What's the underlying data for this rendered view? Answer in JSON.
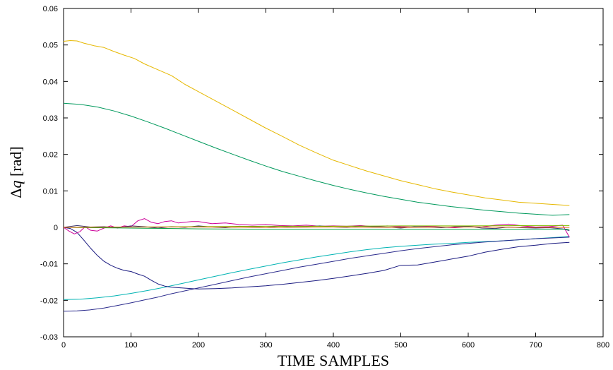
{
  "chart_data": {
    "type": "line",
    "title": "",
    "xlabel": "TIME SAMPLES",
    "ylabel_symbol": "Δ",
    "ylabel_var": "q",
    "ylabel_unit": " [rad]",
    "xlim": [
      0,
      800
    ],
    "ylim": [
      -0.03,
      0.06
    ],
    "xticks": [
      0,
      100,
      200,
      300,
      400,
      500,
      600,
      700,
      800
    ],
    "xtick_labels": [
      "0",
      "100",
      "200",
      "300",
      "400",
      "500",
      "600",
      "700",
      "800"
    ],
    "yticks": [
      -0.03,
      -0.02,
      -0.01,
      0,
      0.01,
      0.02,
      0.03,
      0.04,
      0.05,
      0.06
    ],
    "ytick_labels": [
      "-0.03",
      "-0.02",
      "-0.01",
      "0",
      "0.01",
      "0.02",
      "0.03",
      "0.04",
      "0.05",
      "0.06"
    ],
    "grid": false,
    "series": [
      {
        "color": "#e6b800",
        "x": [
          0,
          10,
          20,
          30,
          45,
          60,
          75,
          90,
          105,
          120,
          140,
          160,
          180,
          200,
          225,
          250,
          275,
          300,
          325,
          350,
          375,
          400,
          425,
          450,
          475,
          500,
          525,
          550,
          575,
          600,
          625,
          650,
          675,
          700,
          725,
          750
        ],
        "y": [
          0.051,
          0.0512,
          0.0511,
          0.0505,
          0.0498,
          0.0493,
          0.0482,
          0.0472,
          0.0463,
          0.0448,
          0.0432,
          0.0416,
          0.0392,
          0.0372,
          0.0347,
          0.0322,
          0.0297,
          0.0272,
          0.0249,
          0.0225,
          0.0204,
          0.0184,
          0.0169,
          0.0154,
          0.0141,
          0.0128,
          0.0117,
          0.0106,
          0.0097,
          0.0089,
          0.0081,
          0.0075,
          0.0069,
          0.0066,
          0.0063,
          0.006
        ]
      },
      {
        "color": "#00995c",
        "x": [
          0,
          25,
          50,
          75,
          100,
          125,
          150,
          175,
          200,
          225,
          250,
          275,
          300,
          325,
          350,
          375,
          400,
          425,
          450,
          475,
          500,
          525,
          550,
          575,
          600,
          625,
          650,
          675,
          700,
          725,
          750
        ],
        "y": [
          0.034,
          0.0337,
          0.033,
          0.0319,
          0.0305,
          0.0289,
          0.0272,
          0.0254,
          0.0236,
          0.0218,
          0.0201,
          0.0184,
          0.0168,
          0.0153,
          0.014,
          0.0127,
          0.0115,
          0.0104,
          0.0094,
          0.0085,
          0.0077,
          0.0069,
          0.0063,
          0.0057,
          0.0052,
          0.0047,
          0.0043,
          0.0039,
          0.0036,
          0.0033,
          0.0035
        ]
      },
      {
        "color": "#00b3b3",
        "x": [
          0,
          25,
          50,
          75,
          100,
          125,
          150,
          175,
          200,
          225,
          250,
          275,
          300,
          325,
          350,
          375,
          400,
          425,
          450,
          475,
          500,
          525,
          550,
          575,
          600,
          625,
          650,
          675,
          700,
          725,
          750
        ],
        "y": [
          -0.0198,
          -0.0197,
          -0.0193,
          -0.0188,
          -0.0181,
          -0.0173,
          -0.0164,
          -0.0154,
          -0.0144,
          -0.0134,
          -0.0124,
          -0.0115,
          -0.0106,
          -0.0097,
          -0.0089,
          -0.0081,
          -0.0074,
          -0.0067,
          -0.0061,
          -0.0056,
          -0.0052,
          -0.0049,
          -0.0046,
          -0.0044,
          -0.0041,
          -0.0039,
          -0.0037,
          -0.0034,
          -0.0031,
          -0.0028,
          -0.0025
        ]
      },
      {
        "color": "#2a2a8c",
        "x": [
          0,
          20,
          40,
          60,
          80,
          100,
          120,
          140,
          160,
          180,
          200,
          225,
          250,
          275,
          300,
          325,
          350,
          375,
          400,
          425,
          450,
          475,
          500,
          525,
          550,
          575,
          600,
          625,
          650,
          675,
          700,
          725,
          750
        ],
        "y": [
          -0.023,
          -0.0229,
          -0.0226,
          -0.0221,
          -0.0214,
          -0.0207,
          -0.0199,
          -0.0191,
          -0.0182,
          -0.0174,
          -0.0166,
          -0.0156,
          -0.0146,
          -0.0136,
          -0.0127,
          -0.0118,
          -0.0109,
          -0.0101,
          -0.0093,
          -0.0085,
          -0.0078,
          -0.0071,
          -0.0064,
          -0.0058,
          -0.0053,
          -0.0048,
          -0.0044,
          -0.004,
          -0.0037,
          -0.0034,
          -0.0031,
          -0.0029,
          -0.0027
        ]
      },
      {
        "color": "#1a1a80",
        "x": [
          0,
          10,
          20,
          30,
          40,
          50,
          60,
          70,
          80,
          90,
          100,
          110,
          120,
          130,
          140,
          150,
          160,
          175,
          190,
          200,
          225,
          250,
          275,
          300,
          325,
          350,
          375,
          400,
          425,
          450,
          475,
          500,
          525,
          550,
          575,
          600,
          625,
          650,
          675,
          700,
          725,
          750
        ],
        "y": [
          0,
          -0.0003,
          -0.0014,
          -0.0035,
          -0.0057,
          -0.0077,
          -0.0093,
          -0.0104,
          -0.0112,
          -0.0118,
          -0.0121,
          -0.0128,
          -0.0134,
          -0.0145,
          -0.0155,
          -0.0161,
          -0.0164,
          -0.0166,
          -0.0168,
          -0.0169,
          -0.0168,
          -0.0166,
          -0.0163,
          -0.016,
          -0.0156,
          -0.0151,
          -0.0146,
          -0.014,
          -0.0133,
          -0.0126,
          -0.0118,
          -0.0104,
          -0.0103,
          -0.0095,
          -0.0087,
          -0.0079,
          -0.0068,
          -0.006,
          -0.0053,
          -0.0049,
          -0.0044,
          -0.0041
        ]
      },
      {
        "color": "#cc0099",
        "x": [
          0,
          8,
          16,
          24,
          32,
          40,
          50,
          60,
          70,
          80,
          90,
          100,
          110,
          120,
          130,
          140,
          150,
          160,
          170,
          180,
          190,
          200,
          220,
          240,
          260,
          280,
          300,
          320,
          340,
          360,
          380,
          400,
          420,
          440,
          460,
          480,
          500,
          520,
          540,
          560,
          580,
          600,
          620,
          640,
          660,
          680,
          700,
          720,
          740,
          750
        ],
        "y": [
          0,
          -0.001,
          -0.0018,
          -0.0012,
          0.0002,
          -0.0008,
          -0.001,
          -0.0002,
          0.0004,
          -0.0002,
          0.0004,
          0.0002,
          0.0018,
          0.0024,
          0.0014,
          0.001,
          0.0016,
          0.0018,
          0.0012,
          0.0014,
          0.0016,
          0.0016,
          0.001,
          0.0012,
          0.0008,
          0.0006,
          0.0008,
          0.0005,
          0.0004,
          0.0006,
          0.0003,
          0.0004,
          0.0003,
          0.0005,
          0.0002,
          0.0004,
          0.0002,
          0.0001,
          0.0003,
          0.0001,
          -0.0001,
          0.0002,
          0.0001,
          0.0006,
          0.0009,
          0.0004,
          0.0001,
          0.0002,
          0.0006,
          -0.0027
        ]
      },
      {
        "color": "#3d3d7a",
        "x": [
          0,
          20,
          40,
          60,
          80,
          100,
          120,
          140,
          160,
          180,
          200,
          220,
          240,
          260,
          280,
          300,
          320,
          340,
          360,
          380,
          400,
          420,
          440,
          460,
          480,
          500,
          520,
          540,
          560,
          580,
          600,
          620,
          640,
          660,
          680,
          700,
          720,
          740,
          750
        ],
        "y": [
          0,
          0.0005,
          0.0001,
          0.0002,
          -0.0001,
          0.0004,
          0.0002,
          -0.0002,
          0.0002,
          0,
          0.0004,
          0.0001,
          -0.0001,
          0.0003,
          0.0002,
          0,
          0.0003,
          0.0001,
          0.0002,
          0.0004,
          0.0001,
          0,
          0.0003,
          0.0002,
          0.0001,
          -0.0002,
          0.0002,
          0.0001,
          -0.0001,
          0.0002,
          0.0003,
          -0.0002,
          -0.0003,
          0.0001,
          -0.0001,
          -0.0002,
          -0.0001,
          -0.0004,
          -0.0009
        ]
      },
      {
        "color": "#00a040",
        "x": [
          0,
          100,
          200,
          300,
          400,
          500,
          600,
          700,
          750
        ],
        "y": [
          0,
          -0.0002,
          -0.0004,
          -0.0005,
          -0.0005,
          -0.0005,
          -0.0005,
          -0.0005,
          -0.0005
        ]
      },
      {
        "color": "#7fbf00",
        "x": [
          0,
          100,
          200,
          300,
          400,
          500,
          600,
          700,
          750
        ],
        "y": [
          0,
          0.0001,
          0.0002,
          0.0003,
          0.0003,
          0.0004,
          0.0004,
          0.0005,
          0.0005
        ]
      },
      {
        "color": "#e65c00",
        "x": [
          0,
          100,
          200,
          300,
          400,
          500,
          600,
          700,
          750
        ],
        "y": [
          0,
          0.0001,
          0.0001,
          0,
          0.0001,
          0,
          0.0001,
          0,
          0
        ]
      }
    ]
  }
}
